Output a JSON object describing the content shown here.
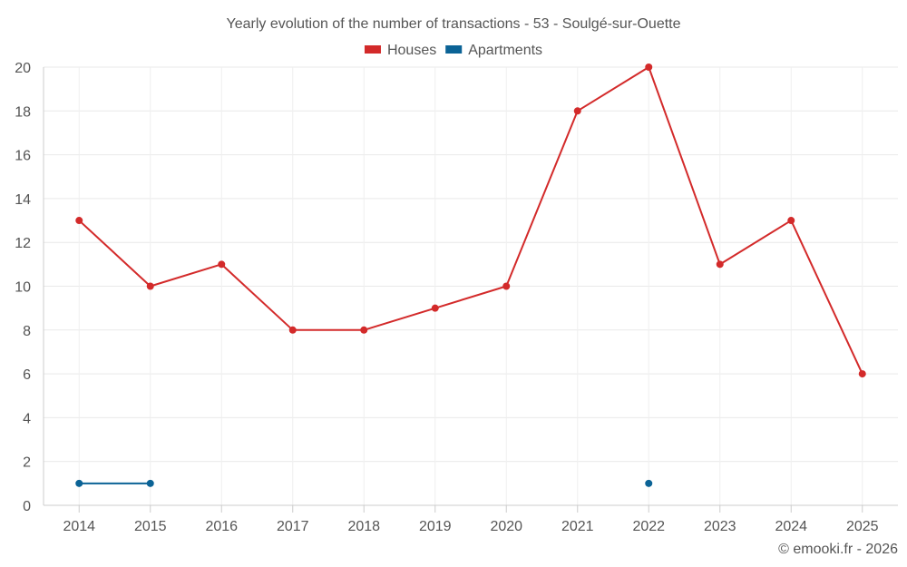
{
  "chart_data": {
    "type": "line",
    "title": "Yearly evolution of the number of transactions - 53 - Soulgé-sur-Ouette",
    "xlabel": "",
    "ylabel": "",
    "categories": [
      "2014",
      "2015",
      "2016",
      "2017",
      "2018",
      "2019",
      "2020",
      "2021",
      "2022",
      "2023",
      "2024",
      "2025"
    ],
    "ylim": [
      0,
      20
    ],
    "yticks": [
      0,
      2,
      4,
      6,
      8,
      10,
      12,
      14,
      16,
      18,
      20
    ],
    "grid": true,
    "legend_position": "top-center",
    "series": [
      {
        "name": "Houses",
        "color": "#d32a2a",
        "values": [
          13,
          10,
          11,
          8,
          8,
          9,
          10,
          18,
          20,
          11,
          13,
          6
        ]
      },
      {
        "name": "Apartments",
        "color": "#0b6396",
        "values": [
          1,
          1,
          null,
          null,
          null,
          null,
          null,
          null,
          1,
          null,
          null,
          null
        ]
      }
    ]
  },
  "credit": "© emooki.fr - 2026"
}
